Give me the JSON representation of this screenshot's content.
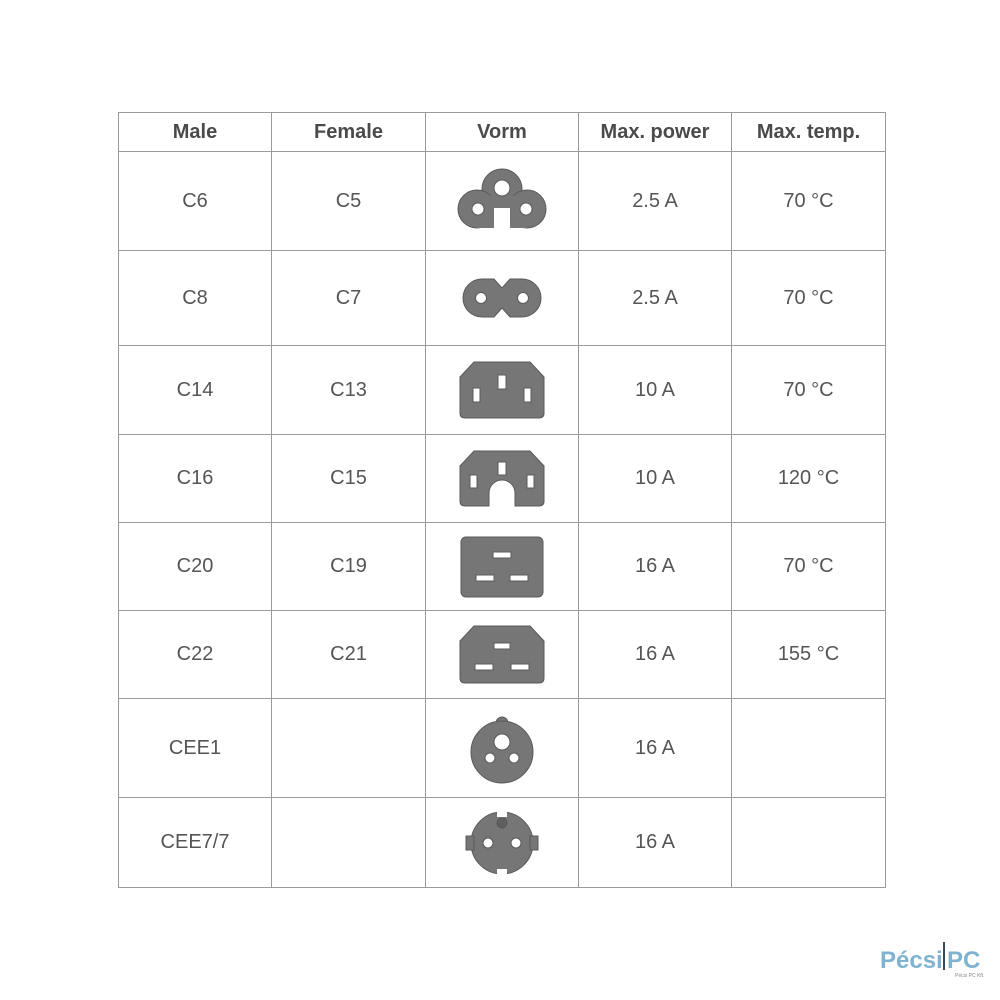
{
  "headers": [
    "Male",
    "Female",
    "Vorm",
    "Max. power",
    "Max. temp."
  ],
  "rows": [
    {
      "male": "C6",
      "female": "C5",
      "shape": "c5-icon",
      "power": "2.5 A",
      "temp": "70 °C"
    },
    {
      "male": "C8",
      "female": "C7",
      "shape": "c7-icon",
      "power": "2.5 A",
      "temp": "70 °C"
    },
    {
      "male": "C14",
      "female": "C13",
      "shape": "c13-icon",
      "power": "10 A",
      "temp": "70 °C"
    },
    {
      "male": "C16",
      "female": "C15",
      "shape": "c15-icon",
      "power": "10 A",
      "temp": "120 °C"
    },
    {
      "male": "C20",
      "female": "C19",
      "shape": "c19-icon",
      "power": "16 A",
      "temp": "70 °C"
    },
    {
      "male": "C22",
      "female": "C21",
      "shape": "c21-icon",
      "power": "16 A",
      "temp": "155 °C"
    },
    {
      "male": "CEE1",
      "female": "",
      "shape": "cee1-icon",
      "power": "16 A",
      "temp": ""
    },
    {
      "male": "CEE7/7",
      "female": "",
      "shape": "cee77-icon",
      "power": "16 A",
      "temp": ""
    }
  ],
  "logo": {
    "text": "PécsiPC",
    "subtext": "Pécsi PC Kft."
  },
  "colors": {
    "icon_fill": "#767676",
    "border": "#9a9a9a",
    "logo": "#7fb3cf"
  }
}
